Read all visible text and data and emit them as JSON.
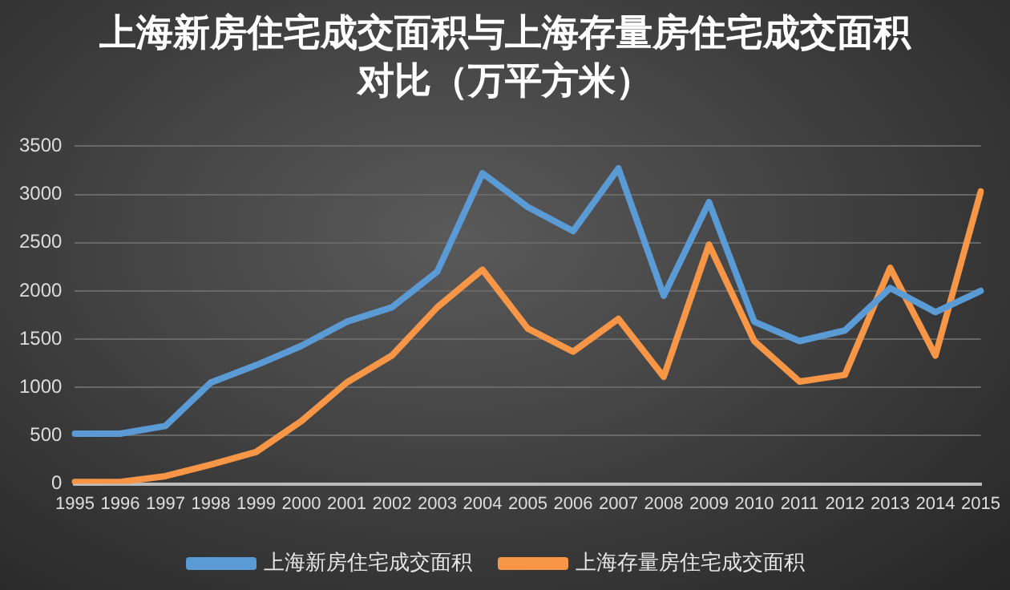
{
  "chart_data": {
    "type": "line",
    "title": "上海新房住宅成交面积与上海存量房住宅成交面积对比（万平方米）",
    "categories": [
      "1995",
      "1996",
      "1997",
      "1998",
      "1999",
      "2000",
      "2001",
      "2002",
      "2003",
      "2004",
      "2005",
      "2006",
      "2007",
      "2008",
      "2009",
      "2010",
      "2011",
      "2012",
      "2013",
      "2014",
      "2015"
    ],
    "series": [
      {
        "name": "上海新房住宅成交面积",
        "color": "#5b9bd5",
        "values": [
          520,
          520,
          600,
          1050,
          1230,
          1430,
          1680,
          1830,
          2200,
          3220,
          2870,
          2620,
          3270,
          1950,
          2920,
          1680,
          1480,
          1590,
          2030,
          1780,
          2000
        ]
      },
      {
        "name": "上海存量房住宅成交面积",
        "color": "#f79646",
        "values": [
          20,
          20,
          80,
          200,
          330,
          650,
          1050,
          1330,
          1830,
          2220,
          1610,
          1370,
          1710,
          1110,
          2480,
          1480,
          1060,
          1130,
          2240,
          1330,
          3030
        ]
      }
    ],
    "ylim": [
      0,
      3500
    ],
    "yticks": [
      0,
      500,
      1000,
      1500,
      2000,
      2500,
      3000,
      3500
    ],
    "grid": "y",
    "legend": "bottom",
    "marker": "none",
    "line_style": "solid"
  }
}
